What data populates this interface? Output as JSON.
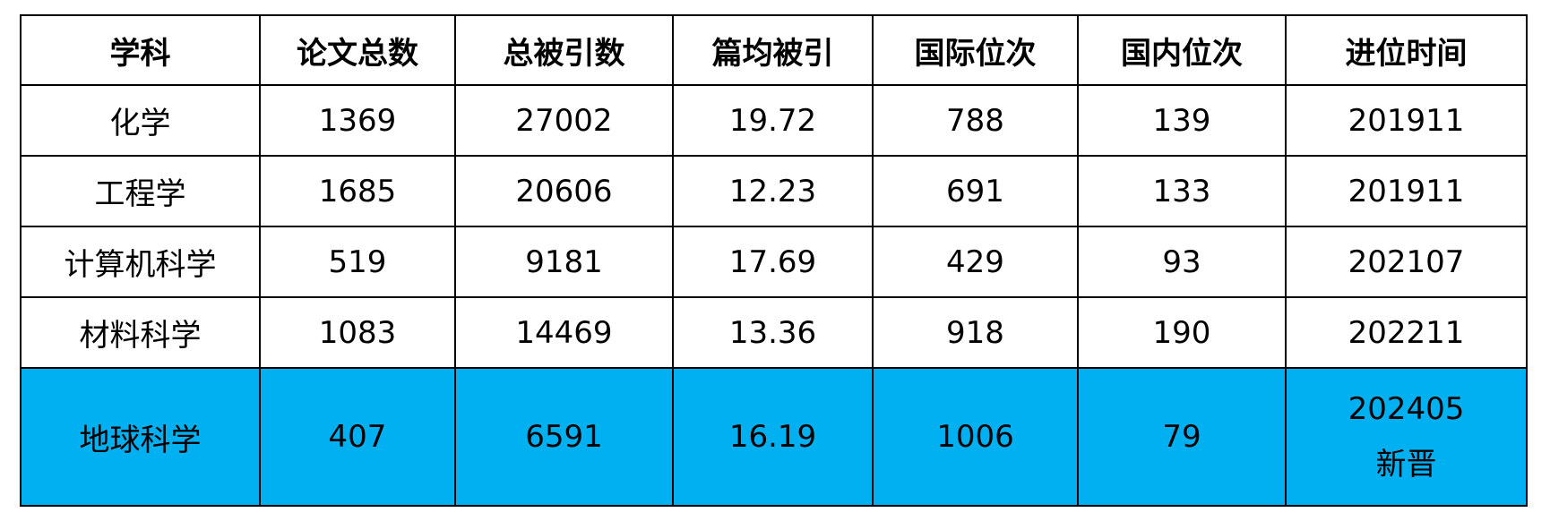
{
  "columns": [
    "学科",
    "论文总数",
    "总被引数",
    "篇均被引",
    "国际位次",
    "国内位次",
    "进位时间"
  ],
  "rows": [
    [
      "化学",
      "1369",
      "27002",
      "19.72",
      "788",
      "139",
      "201911"
    ],
    [
      "工程学",
      "1685",
      "20606",
      "12.23",
      "691",
      "133",
      "201911"
    ],
    [
      "计算机科学",
      "519",
      "9181",
      "17.69",
      "429",
      "93",
      "202107"
    ],
    [
      "材料科学",
      "1083",
      "14469",
      "13.36",
      "918",
      "190",
      "202211"
    ]
  ],
  "highlight_row": {
    "cells": [
      "地球科学",
      "407",
      "6591",
      "16.19",
      "1006",
      "79",
      "202405"
    ],
    "note": "新晋",
    "background": "#00b0f0"
  }
}
